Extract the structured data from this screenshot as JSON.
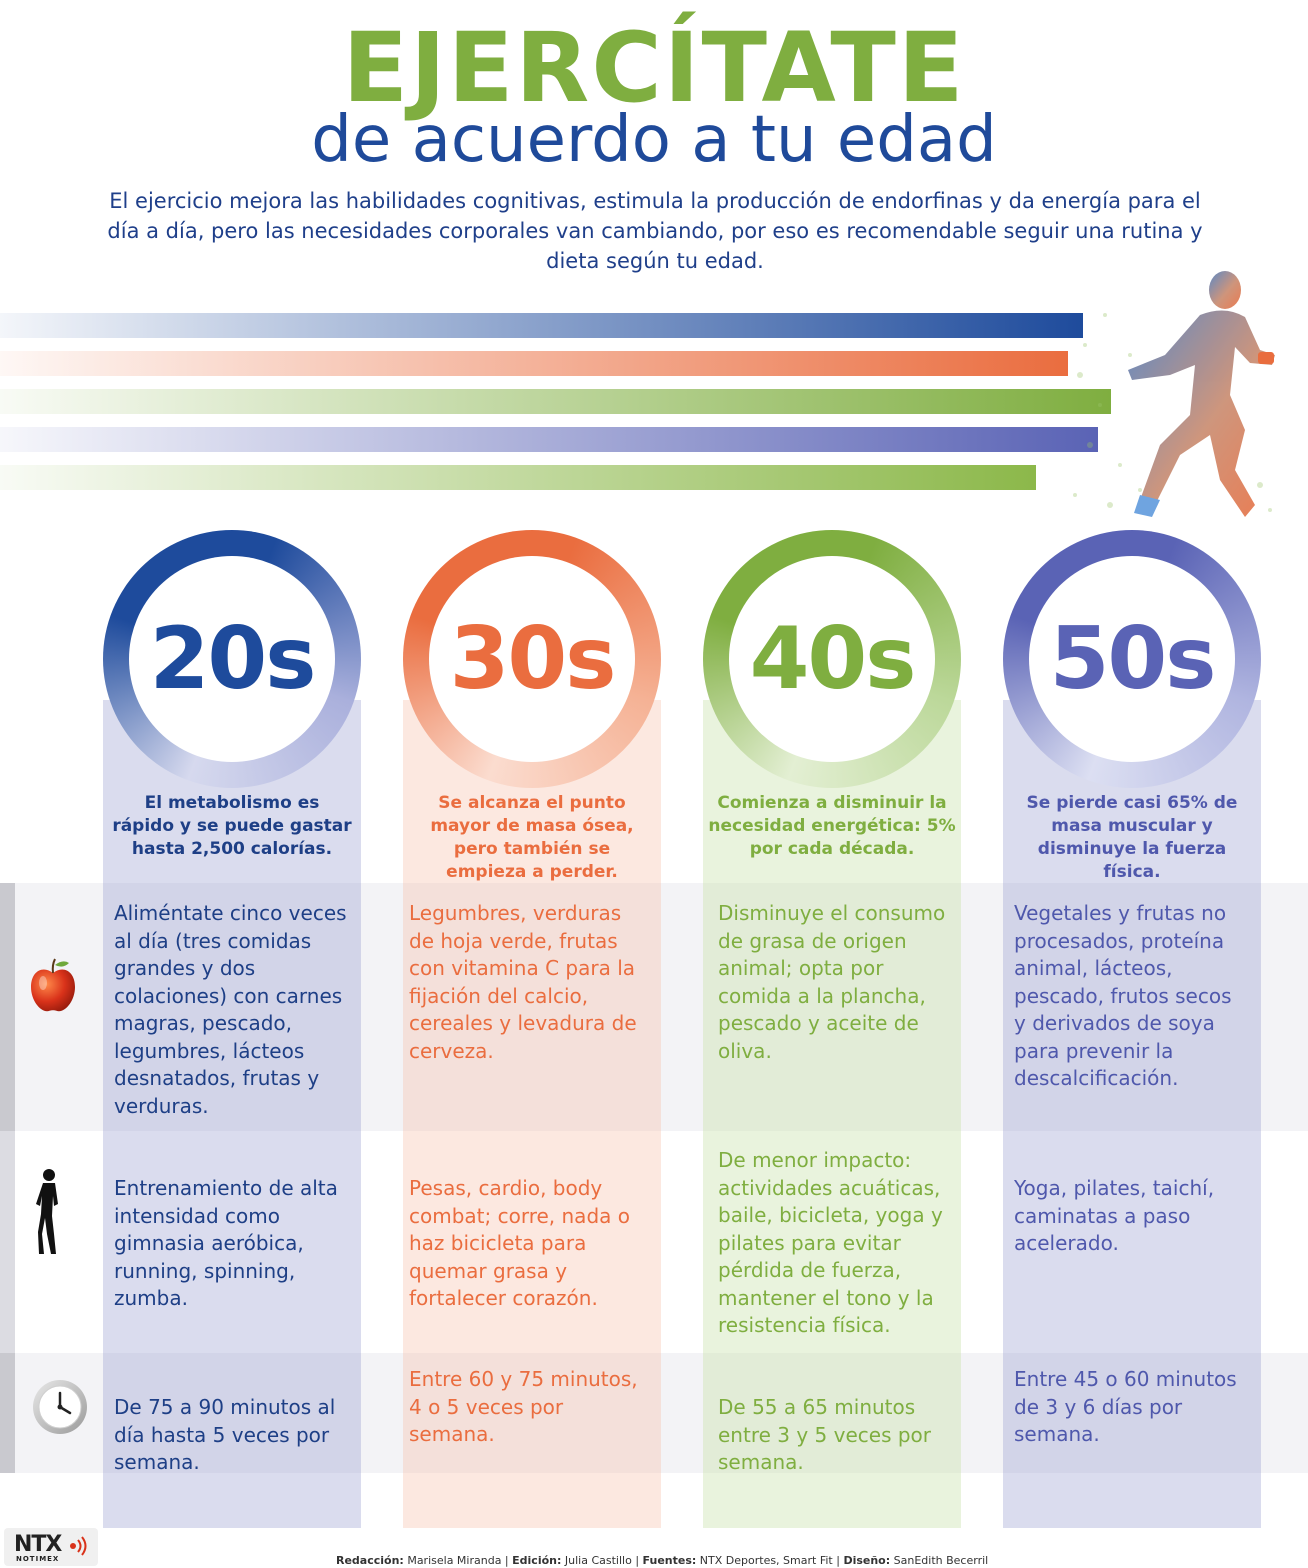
{
  "header": {
    "title": "EJERCÍTATE",
    "subtitle": "de acuerdo a tu edad",
    "intro": "El ejercicio mejora las habilidades cognitivas, estimula la producción de endorfinas y da energía para el día a día, pero las necesidades corporales van cambiando, por eso es recomendable seguir una rutina y dieta según tu edad."
  },
  "colors": {
    "blue": "#1e4b9c",
    "orange": "#ea6d3f",
    "green": "#7fae40",
    "purple": "#5a63b5"
  },
  "icons": {
    "nutrition": "apple-icon",
    "exercise": "runner-silhouette-icon",
    "time": "clock-icon"
  },
  "columns": [
    {
      "age": "20s",
      "headline": "El metabolismo es rápido y se puede gastar hasta 2,500 calorías.",
      "nutrition": "Aliméntate cinco veces al día (tres comidas grandes y dos colaciones) con carnes magras, pescado, legumbres, lácteos desnatados, frutas y verduras.",
      "exercise": "Entrenamiento de alta intensidad como gimnasia aeróbica, running, spinning, zumba.",
      "time": "De 75 a 90 minutos al día hasta 5 veces por semana."
    },
    {
      "age": "30s",
      "headline": "Se alcanza el punto mayor de masa ósea, pero también se empieza a perder.",
      "nutrition": "Legumbres, verduras de hoja verde, frutas con vitamina C para la fijación del calcio, cereales y levadura de cerveza.",
      "exercise": "Pesas, cardio, body combat; corre, nada o haz bicicleta para quemar grasa y fortalecer corazón.",
      "time": "Entre 60 y 75 minutos, 4 o 5 veces por semana."
    },
    {
      "age": "40s",
      "headline": "Comienza a disminuir la necesidad energética: 5% por cada década.",
      "nutrition": "Disminuye el consumo de grasa de origen animal; opta por comida a la plancha, pescado y aceite de oliva.",
      "exercise": "De menor impacto: actividades acuáticas, baile, bicicleta, yoga y pilates para evitar pérdida de fuerza, mantener el tono y la resistencia física.",
      "time": "De 55 a 65 minutos entre 3 y 5 veces por semana."
    },
    {
      "age": "50s",
      "headline": "Se pierde casi 65% de masa muscular y disminuye la fuerza física.",
      "nutrition": "Vegetales y frutas no procesados, proteína animal, lácteos, pescado, frutos secos y derivados de soya para prevenir la descalcificación.",
      "exercise": "Yoga, pilates, taichí, caminatas a paso acelerado.",
      "time": "Entre 45 o 60 minutos de 3 y 6 días por semana."
    }
  ],
  "credits": {
    "label_1": "Redacción:",
    "value_1": "Marisela Miranda",
    "label_2": "Edición:",
    "value_2": "Julia Castillo",
    "label_3": "Fuentes:",
    "value_3": "NTX Deportes, Smart Fit",
    "label_4": "Diseño:",
    "value_4": "SanEdith Becerril"
  },
  "logo": {
    "main": "NTX",
    "sub": "NOTIMEX"
  }
}
